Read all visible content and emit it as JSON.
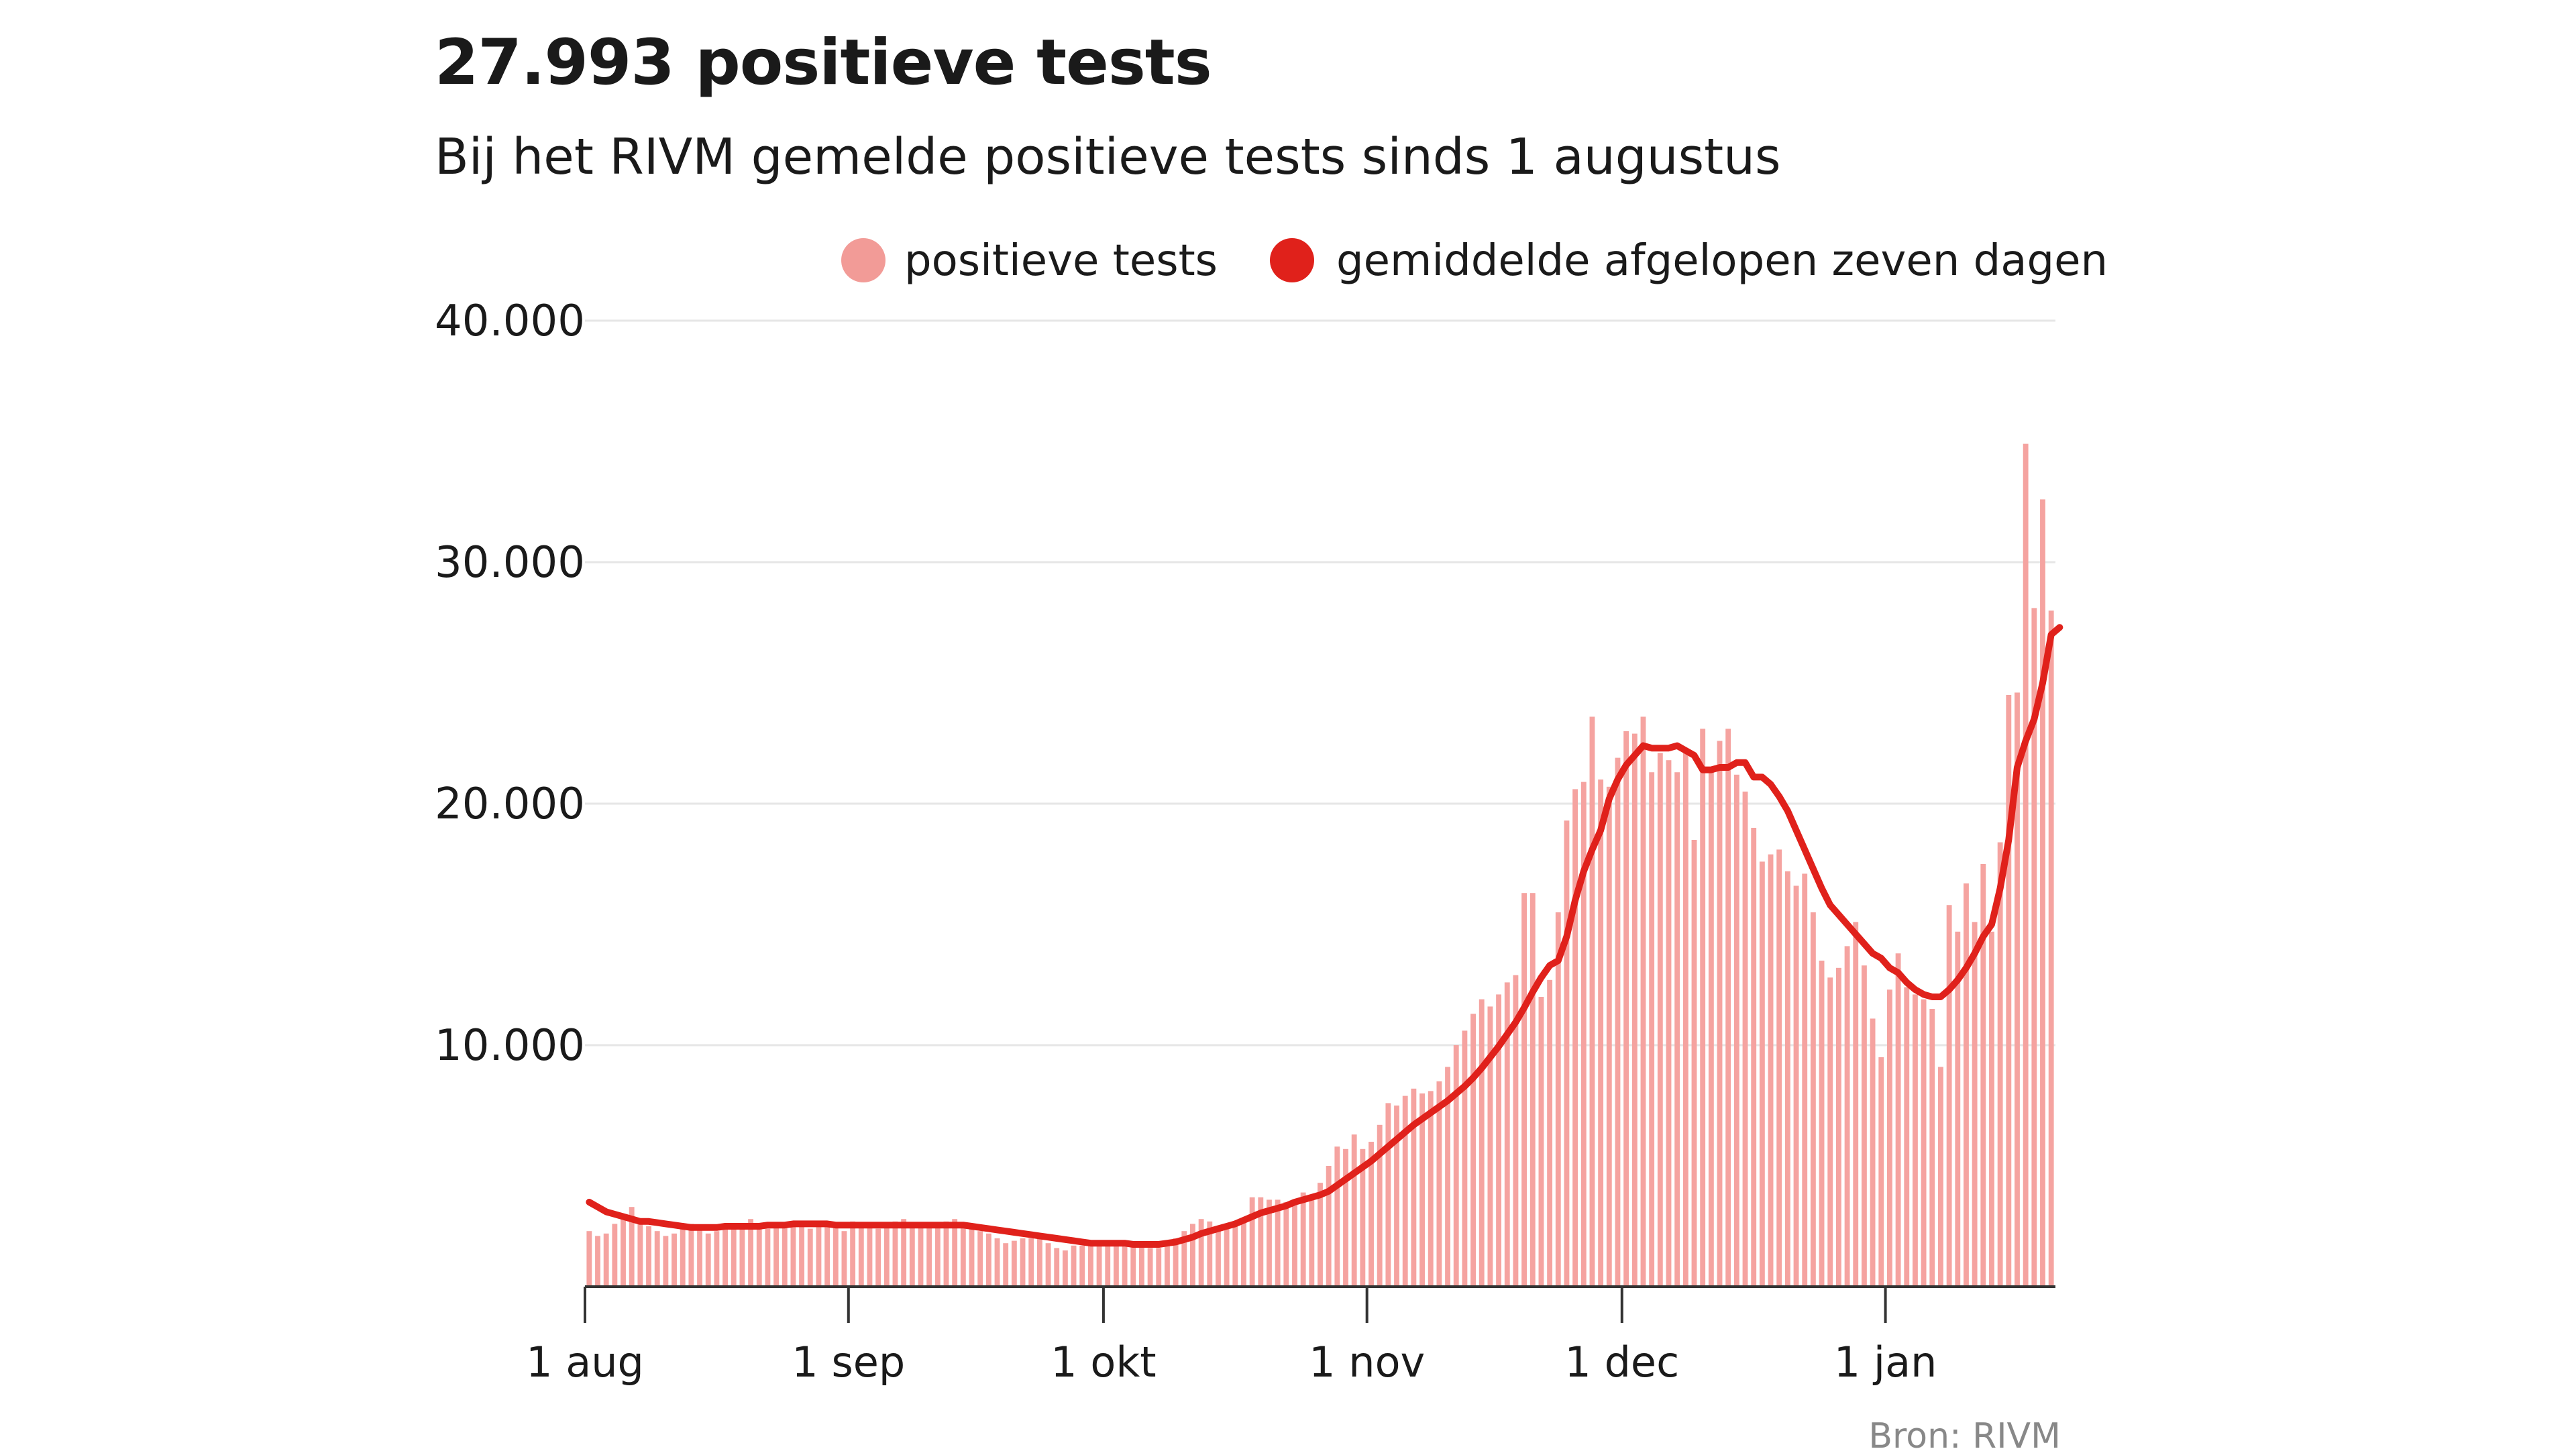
{
  "title": "27.993 positieve tests",
  "subtitle": "Bij het RIVM gemelde positieve tests sinds 1 augustus",
  "source": "Bron: RIVM",
  "colors": {
    "bars": "#f5a3a0",
    "line": "#e0211b",
    "grid": "#e6e6e6",
    "axis": "#333333",
    "legendBar": "#f29b97",
    "legendLine": "#e0211b"
  },
  "chart_data": {
    "type": "bar",
    "title": "27.993 positieve tests",
    "subtitle": "Bij het RIVM gemelde positieve tests sinds 1 augustus",
    "xlabel": "",
    "ylabel": "",
    "ylim": [
      0,
      40000
    ],
    "y_ticks": [
      10000,
      20000,
      30000,
      40000
    ],
    "y_tick_labels": [
      "10.000",
      "20.000",
      "30.000",
      "40.000"
    ],
    "x_ticks": [
      {
        "day": 0,
        "label": "1 aug"
      },
      {
        "day": 31,
        "label": "1 sep"
      },
      {
        "day": 61,
        "label": "1 okt"
      },
      {
        "day": 92,
        "label": "1 nov"
      },
      {
        "day": 122,
        "label": "1 dec"
      },
      {
        "day": 153,
        "label": "1 jan"
      }
    ],
    "legend": {
      "position": "top-right"
    },
    "series": [
      {
        "name": "positieve tests",
        "kind": "bar",
        "values": [
          2300,
          2100,
          2200,
          2600,
          3000,
          3300,
          2700,
          2500,
          2300,
          2100,
          2200,
          2400,
          2600,
          2400,
          2200,
          2300,
          2400,
          2500,
          2600,
          2800,
          2500,
          2400,
          2500,
          2600,
          2600,
          2500,
          2400,
          2600,
          2600,
          2500,
          2300,
          2700,
          2600,
          2500,
          2400,
          2600,
          2700,
          2800,
          2600,
          2500,
          2500,
          2600,
          2700,
          2800,
          2500,
          2400,
          2300,
          2200,
          2000,
          1800,
          1900,
          2000,
          2000,
          2000,
          1800,
          1600,
          1500,
          1700,
          1700,
          1800,
          1800,
          1700,
          1700,
          1700,
          1700,
          1700,
          1600,
          1600,
          1800,
          2000,
          2300,
          2600,
          2800,
          2700,
          2500,
          2500,
          2600,
          2800,
          3700,
          3700,
          3600,
          3600,
          3500,
          3400,
          3900,
          3700,
          4300,
          5000,
          5800,
          5700,
          6300,
          5700,
          6000,
          6700,
          7600,
          7500,
          7900,
          8200,
          8000,
          8100,
          8500,
          9100,
          10000,
          10600,
          11300,
          11900,
          11600,
          12100,
          12600,
          12900,
          16300,
          16300,
          12000,
          12700,
          15500,
          19300,
          20600,
          20900,
          23600,
          21000,
          20700,
          21900,
          23000,
          22900,
          23600,
          21300,
          22100,
          21800,
          21300,
          22300,
          18500,
          23100,
          21300,
          22600,
          23100,
          21200,
          20500,
          19000,
          17600,
          17900,
          18100,
          17200,
          16600,
          17100,
          15500,
          13500,
          12800,
          13200,
          14100,
          15100,
          13300,
          11100,
          9500,
          12300,
          13800,
          12400,
          12100,
          11900,
          11500,
          9100,
          15800,
          14700,
          16700,
          15100,
          17500,
          14700,
          18400,
          24500,
          24600,
          34900,
          28100,
          32600,
          27993
        ]
      },
      {
        "name": "gemiddelde afgelopen zeven dagen",
        "kind": "line",
        "values": [
          3500,
          3300,
          3100,
          3000,
          2900,
          2800,
          2700,
          2700,
          2650,
          2600,
          2550,
          2500,
          2450,
          2450,
          2450,
          2450,
          2500,
          2500,
          2500,
          2500,
          2500,
          2550,
          2550,
          2550,
          2600,
          2600,
          2600,
          2600,
          2600,
          2550,
          2550,
          2550,
          2550,
          2550,
          2550,
          2550,
          2550,
          2550,
          2550,
          2550,
          2550,
          2550,
          2550,
          2550,
          2550,
          2500,
          2450,
          2400,
          2350,
          2300,
          2250,
          2200,
          2150,
          2100,
          2050,
          2000,
          1950,
          1900,
          1850,
          1800,
          1800,
          1800,
          1800,
          1800,
          1750,
          1750,
          1750,
          1750,
          1800,
          1850,
          1950,
          2050,
          2200,
          2300,
          2400,
          2500,
          2600,
          2750,
          2900,
          3050,
          3150,
          3250,
          3350,
          3500,
          3600,
          3700,
          3800,
          3950,
          4200,
          4450,
          4700,
          4950,
          5200,
          5500,
          5800,
          6100,
          6400,
          6700,
          6950,
          7200,
          7450,
          7700,
          8000,
          8300,
          8650,
          9050,
          9500,
          9950,
          10450,
          10950,
          11550,
          12200,
          12800,
          13300,
          13500,
          14500,
          16000,
          17200,
          18100,
          18900,
          20200,
          21000,
          21600,
          22000,
          22400,
          22300,
          22300,
          22300,
          22400,
          22200,
          22000,
          21400,
          21400,
          21500,
          21500,
          21700,
          21700,
          21100,
          21100,
          20800,
          20300,
          19700,
          18900,
          18100,
          17300,
          16500,
          15800,
          15400,
          15000,
          14600,
          14200,
          13800,
          13600,
          13200,
          13000,
          12600,
          12300,
          12100,
          12000,
          12000,
          12300,
          12700,
          13200,
          13800,
          14500,
          15000,
          16500,
          18500,
          21500,
          22600,
          23500,
          25000,
          27000,
          27300
        ]
      }
    ]
  }
}
